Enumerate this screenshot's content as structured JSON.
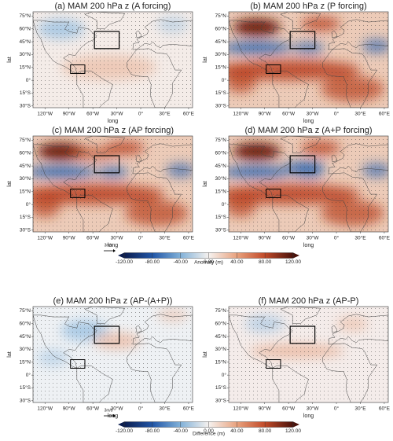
{
  "panels": [
    {
      "title": "(a) MAM 200 hPa z (A forcing)"
    },
    {
      "title": "(b) MAM 200 hPa z (P forcing)"
    },
    {
      "title": "(c) MAM 200 hPa z (AP forcing)"
    },
    {
      "title": "(d) MAM 200 hPa z (A+P forcing)"
    },
    {
      "title": "(e) MAM 200 hPa z (AP-(A+P))"
    },
    {
      "title": "(f) MAM 200 hPa z (AP-P)"
    }
  ],
  "lat_label": "lat",
  "lon_label": "long",
  "lat_ticks": [
    {
      "value": 75,
      "label": "75°N"
    },
    {
      "value": 60,
      "label": "60°N"
    },
    {
      "value": 45,
      "label": "45°N"
    },
    {
      "value": 30,
      "label": "30°N"
    },
    {
      "value": 15,
      "label": "15°N"
    },
    {
      "value": 0,
      "label": "0°"
    },
    {
      "value": -15,
      "label": "15°S"
    },
    {
      "value": -30,
      "label": "30°S"
    }
  ],
  "lon_ticks": [
    {
      "value": -120,
      "label": "120°W"
    },
    {
      "value": -90,
      "label": "90°W"
    },
    {
      "value": -60,
      "label": "60°W"
    },
    {
      "value": -30,
      "label": "30°W"
    },
    {
      "value": 0,
      "label": "0°"
    },
    {
      "value": 30,
      "label": "30°E"
    },
    {
      "value": 60,
      "label": "60°E"
    }
  ],
  "vector_reference": "3m/s",
  "colorbars": [
    {
      "label": "Anomaly (m)",
      "ticks": [
        {
          "value": -120,
          "label": "-120.00"
        },
        {
          "value": -80,
          "label": "-80.00"
        },
        {
          "value": -40,
          "label": "-40.00"
        },
        {
          "value": 0,
          "label": "0.00"
        },
        {
          "value": 40,
          "label": "40.00"
        },
        {
          "value": 80,
          "label": "80.00"
        },
        {
          "value": 120,
          "label": "120.00"
        }
      ]
    },
    {
      "label": "Difference (m)",
      "ticks": [
        {
          "value": -120,
          "label": "-120.00"
        },
        {
          "value": -80,
          "label": "-80.00"
        },
        {
          "value": -40,
          "label": "-40.00"
        },
        {
          "value": 0,
          "label": "0.00"
        },
        {
          "value": 40,
          "label": "40.00"
        },
        {
          "value": 80,
          "label": "80.00"
        },
        {
          "value": 120,
          "label": "120.00"
        }
      ]
    }
  ]
}
